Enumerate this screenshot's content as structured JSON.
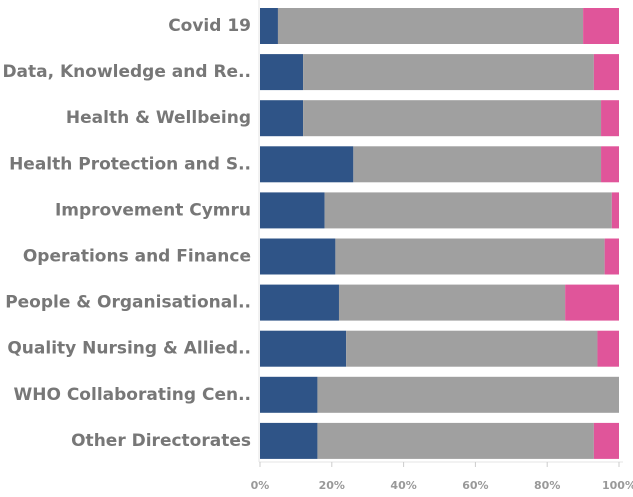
{
  "chart_data": {
    "type": "stacked_bar_horizontal",
    "categories": [
      "Covid 19",
      "Data, Knowledge and Re..",
      "Health & Wellbeing",
      "Health Protection and S..",
      "Improvement Cymru",
      "Operations and Finance",
      "People & Organisational..",
      "Quality Nursing & Allied..",
      "WHO Collaborating Cen..",
      "Other Directorates"
    ],
    "series": [
      {
        "color": "#2f5487",
        "values": [
          5,
          12,
          12,
          26,
          18,
          21,
          22,
          24,
          16,
          16
        ]
      },
      {
        "color": "#a0a0a0",
        "values": [
          85,
          81,
          83,
          69,
          80,
          75,
          63,
          70,
          84,
          77
        ]
      },
      {
        "color": "#e0559a",
        "values": [
          10,
          7,
          5,
          5,
          2,
          4,
          15,
          6,
          0,
          7
        ]
      }
    ],
    "xlim": [
      0,
      100
    ],
    "xticks": [
      {
        "value": 0,
        "label": "0%"
      },
      {
        "value": 20,
        "label": "20%"
      },
      {
        "value": 40,
        "label": "40%"
      },
      {
        "value": 60,
        "label": "60%"
      },
      {
        "value": 80,
        "label": "80%"
      },
      {
        "value": 100,
        "label": "100%"
      }
    ]
  }
}
